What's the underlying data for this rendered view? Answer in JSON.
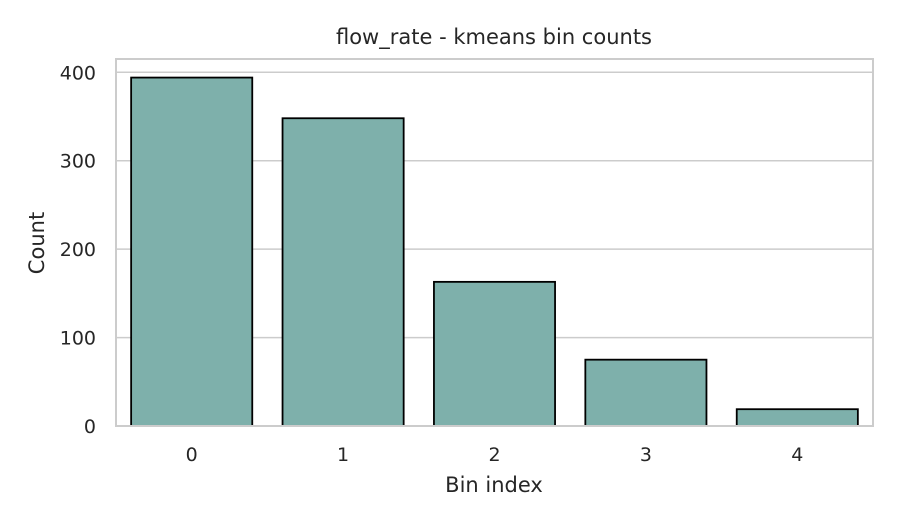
{
  "chart_data": {
    "type": "bar",
    "title": "flow_rate - kmeans bin counts",
    "xlabel": "Bin index",
    "ylabel": "Count",
    "categories": [
      "0",
      "1",
      "2",
      "3",
      "4"
    ],
    "values": [
      394,
      348,
      163,
      75,
      19
    ],
    "ylim": [
      0,
      415
    ],
    "yticks": [
      0,
      100,
      200,
      300,
      400
    ],
    "grid": "horizontal",
    "bar_color": "#7eb0ab",
    "edge_color": "#000000"
  }
}
